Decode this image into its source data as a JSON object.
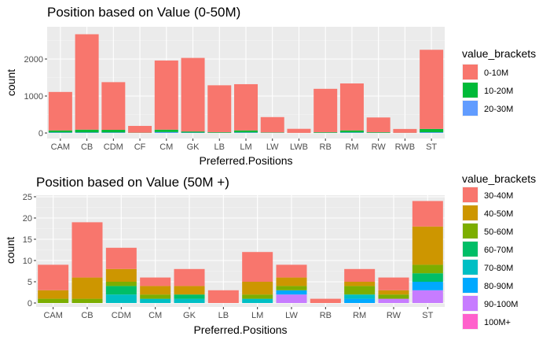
{
  "chart_data": [
    {
      "type": "bar",
      "stacked": true,
      "title": "Position based on Value (0-50M)",
      "xlabel": "Preferred.Positions",
      "ylabel": "count",
      "ylim": [
        0,
        2800
      ],
      "yticks": [
        0,
        1000,
        2000
      ],
      "grid": true,
      "legend_title": "value_brackets",
      "legend_position": "right",
      "categories": [
        "CAM",
        "CB",
        "CDM",
        "CF",
        "CM",
        "GK",
        "LB",
        "LM",
        "LW",
        "LWB",
        "RB",
        "RM",
        "RW",
        "RWB",
        "ST"
      ],
      "series": [
        {
          "name": "0-10M",
          "color": "#F8766D",
          "values": [
            1040,
            2580,
            1290,
            185,
            1870,
            1990,
            1270,
            1250,
            415,
            110,
            1175,
            1270,
            400,
            105,
            2140
          ]
        },
        {
          "name": "10-20M",
          "color": "#00BA38",
          "values": [
            55,
            75,
            70,
            5,
            65,
            30,
            15,
            55,
            10,
            2,
            15,
            55,
            15,
            3,
            90
          ]
        },
        {
          "name": "20-30M",
          "color": "#619CFF",
          "values": [
            15,
            15,
            15,
            2,
            25,
            10,
            5,
            15,
            5,
            1,
            5,
            15,
            5,
            1,
            20
          ]
        }
      ]
    },
    {
      "type": "bar",
      "stacked": true,
      "title": "Position based on Value (50M +)",
      "xlabel": "Preferred.Positions",
      "ylabel": "count",
      "ylim": [
        0,
        25
      ],
      "yticks": [
        0,
        5,
        10,
        15,
        20,
        25
      ],
      "grid": true,
      "legend_title": "value_brackets",
      "legend_position": "right",
      "categories": [
        "CAM",
        "CB",
        "CDM",
        "CM",
        "GK",
        "LB",
        "LM",
        "LW",
        "RB",
        "RM",
        "RW",
        "ST"
      ],
      "series": [
        {
          "name": "30-40M",
          "color": "#F8766D",
          "values": [
            6,
            13,
            5,
            2,
            4,
            3,
            7,
            3,
            1,
            3,
            3,
            6
          ]
        },
        {
          "name": "40-50M",
          "color": "#CD9600",
          "values": [
            2,
            5,
            3,
            2,
            2,
            0,
            3,
            2,
            0,
            1,
            1,
            9
          ]
        },
        {
          "name": "50-60M",
          "color": "#7CAE00",
          "values": [
            1,
            1,
            1,
            1,
            0,
            0,
            1,
            1,
            0,
            2,
            1,
            2
          ]
        },
        {
          "name": "60-70M",
          "color": "#00BE67",
          "values": [
            0,
            0,
            2,
            0,
            1,
            0,
            0,
            0,
            0,
            0,
            0,
            2
          ]
        },
        {
          "name": "70-80M",
          "color": "#00BFC4",
          "values": [
            0,
            0,
            2,
            1,
            1,
            0,
            1,
            0,
            0,
            1,
            0,
            0
          ]
        },
        {
          "name": "80-90M",
          "color": "#00A9FF",
          "values": [
            0,
            0,
            0,
            0,
            0,
            0,
            0,
            1,
            0,
            1,
            0,
            2
          ]
        },
        {
          "name": "90-100M",
          "color": "#C77CFF",
          "values": [
            0,
            0,
            0,
            0,
            0,
            0,
            0,
            2,
            0,
            0,
            1,
            3
          ]
        },
        {
          "name": "100M+",
          "color": "#FF61CC",
          "values": [
            0,
            0,
            0,
            0,
            0,
            0,
            0,
            0,
            0,
            0,
            0,
            0
          ]
        }
      ]
    }
  ]
}
